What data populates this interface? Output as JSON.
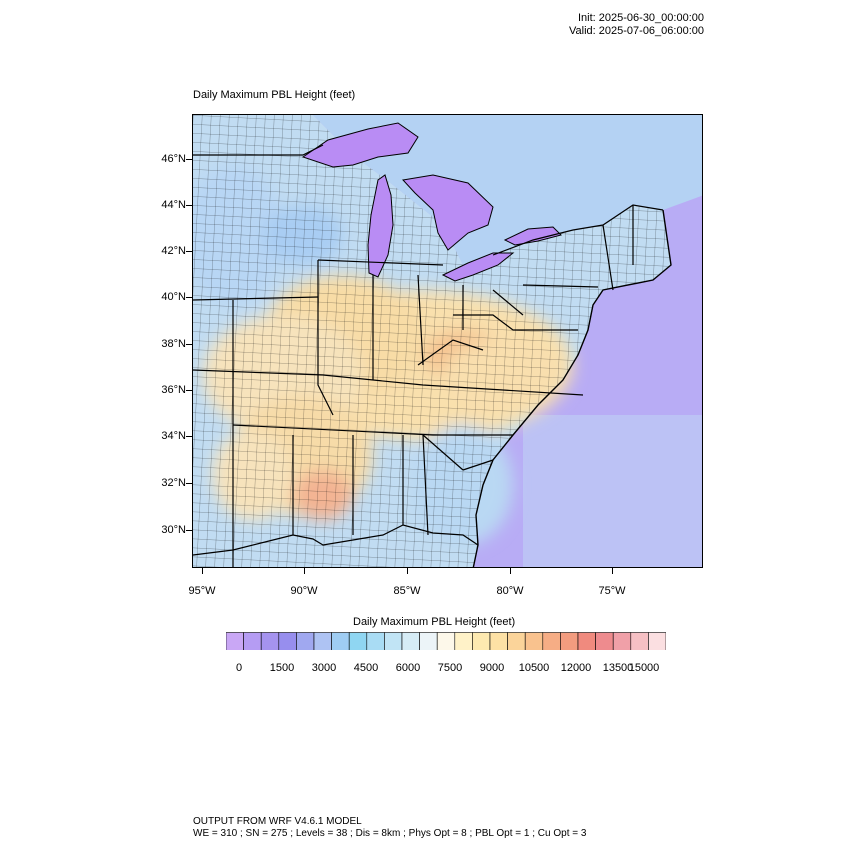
{
  "header": {
    "init": "Init: 2025-06-30_00:00:00",
    "valid": "Valid: 2025-07-06_06:00:00"
  },
  "map": {
    "title": "Daily Maximum PBL Height   (feet)",
    "lat_labels": [
      "46°N",
      "44°N",
      "42°N",
      "40°N",
      "38°N",
      "36°N",
      "34°N",
      "32°N",
      "30°N"
    ],
    "lon_labels": [
      "95°W",
      "90°W",
      "85°W",
      "80°W",
      "75°W"
    ],
    "colors": {
      "lake": "#b98cf4",
      "ocean": "#b8acf5",
      "land_low": "#bcd8f2",
      "land_mid": "#f8e4b4",
      "land_high": "#f2b49a"
    }
  },
  "colorbar": {
    "title": "Daily Maximum PBL Height  (feet)",
    "labels": [
      "0",
      "1500",
      "3000",
      "4500",
      "6000",
      "7500",
      "9000",
      "10500",
      "12000",
      "13500",
      "15000"
    ],
    "swatches": [
      "#c9a7f5",
      "#b59cf3",
      "#a593ef",
      "#978eee",
      "#a0a8f0",
      "#aec3f3",
      "#9fcdf3",
      "#8fd6f2",
      "#a9dcf4",
      "#c1e4f5",
      "#d6ecf6",
      "#ecf4f8",
      "#fdf8ea",
      "#fff2c8",
      "#fde9b0",
      "#fde1a5",
      "#fbd49a",
      "#f9c28e",
      "#f6ad85",
      "#f39c7f",
      "#f08a7e",
      "#ee8b8e",
      "#f0a0a8",
      "#f6c0c4",
      "#fbdfe1"
    ]
  },
  "footer": {
    "line1": "OUTPUT FROM WRF V4.6.1 MODEL",
    "line2": "WE = 310 ; SN = 275 ; Levels = 38 ; Dis = 8km ; Phys Opt = 8 ; PBL Opt = 1 ; Cu Opt = 3"
  }
}
